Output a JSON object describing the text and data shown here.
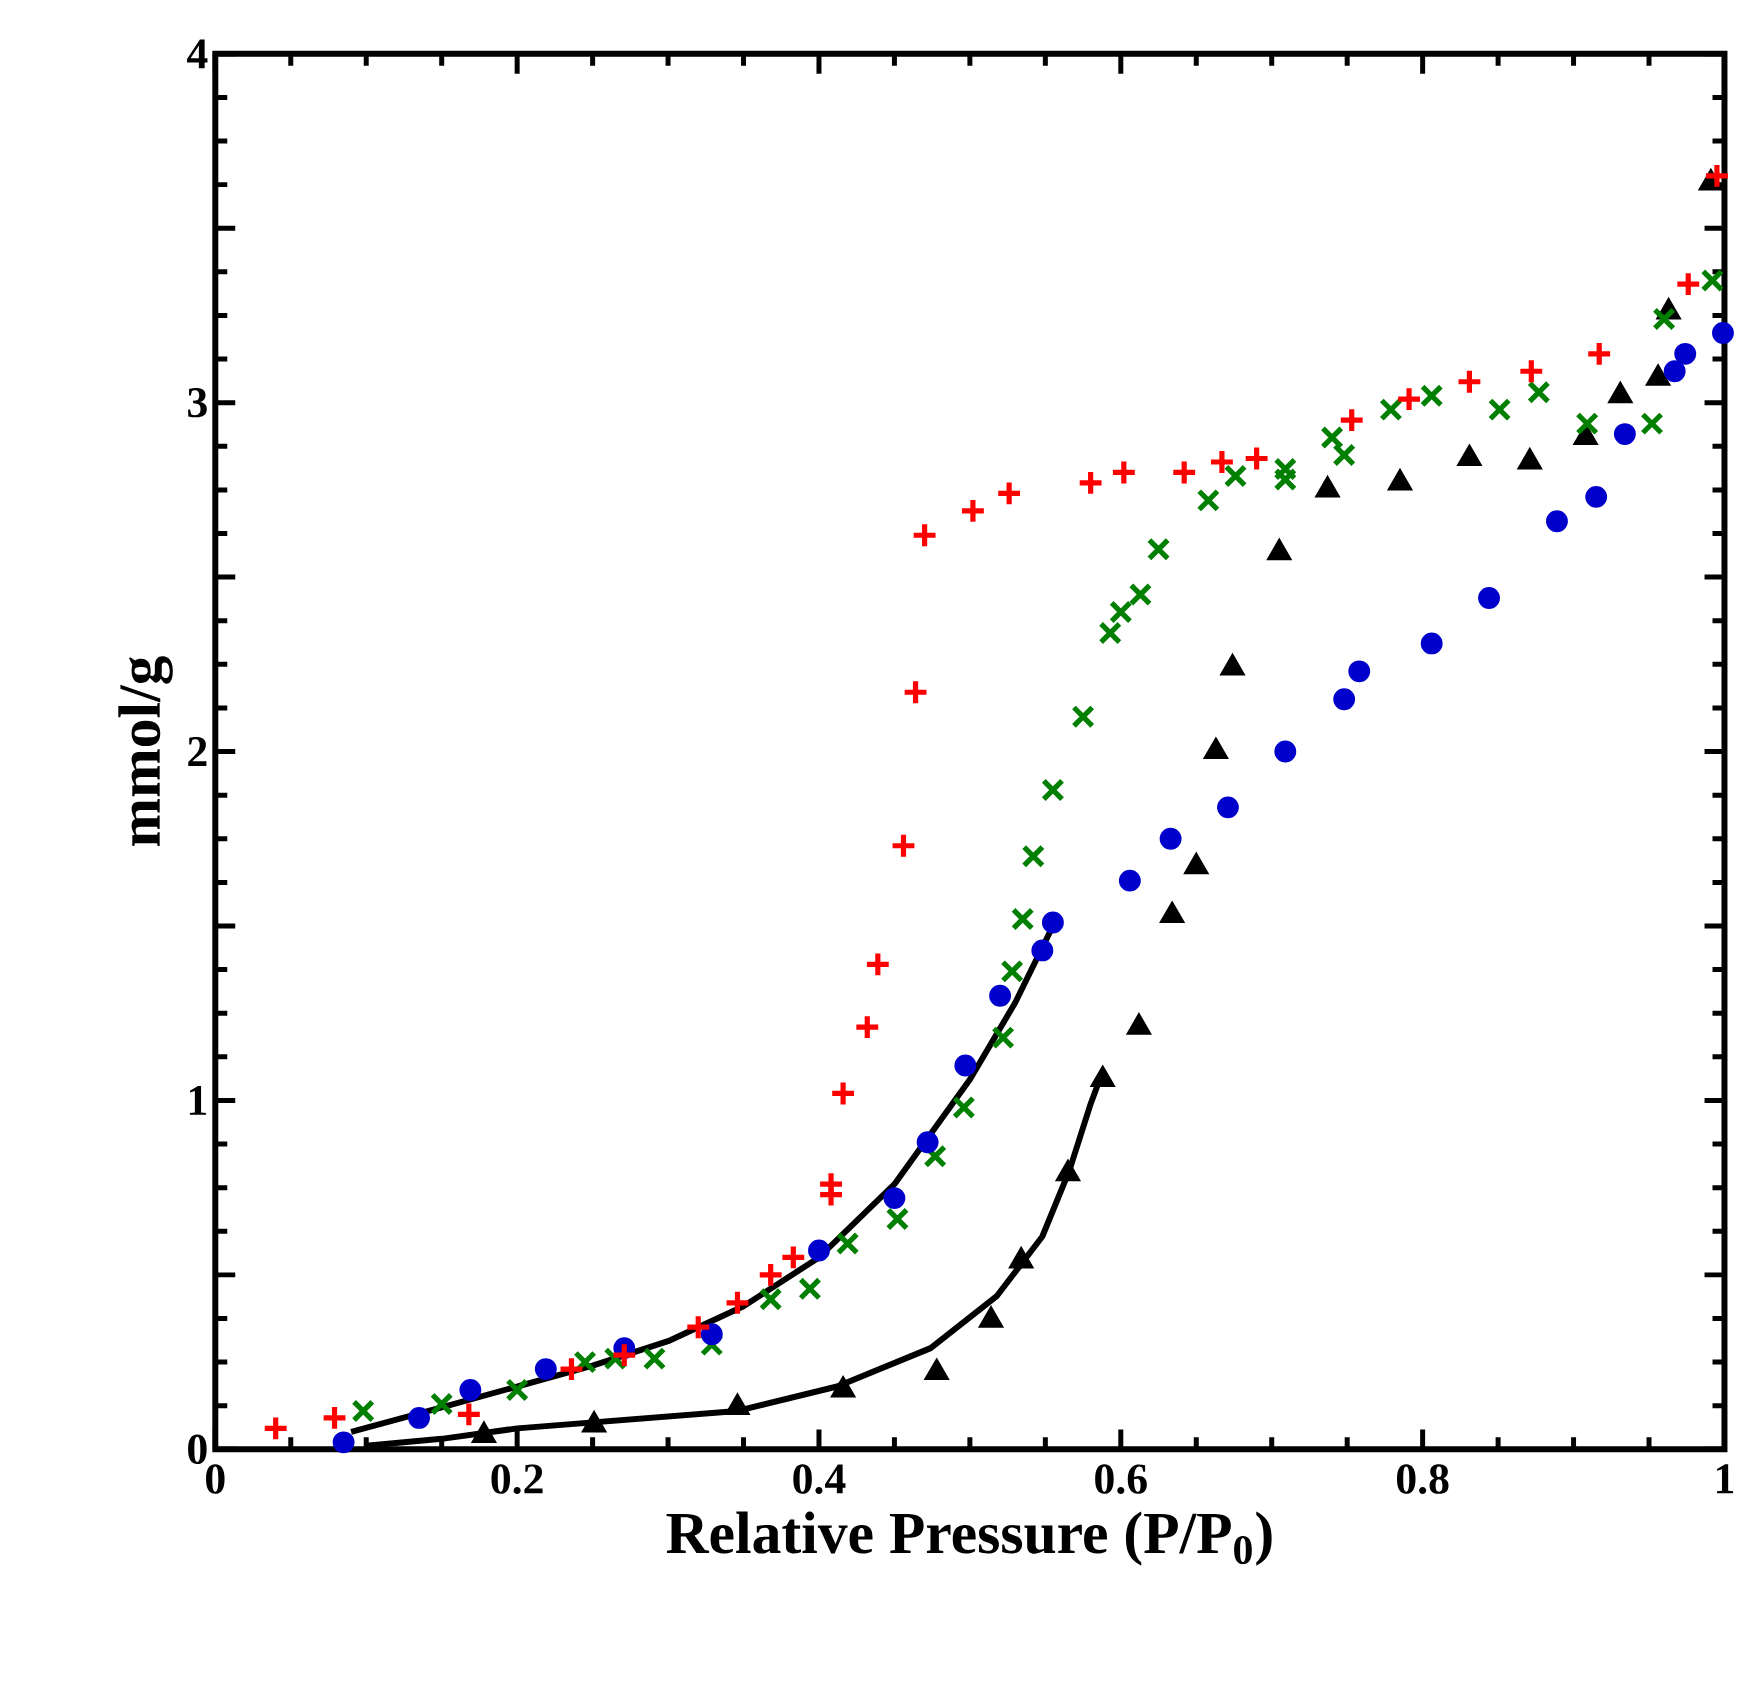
{
  "chart_data": {
    "type": "scatter",
    "xlabel": "Relative Pressure (P/P$_{0}$)",
    "ylabel": "mmol/g",
    "xlim": [
      0,
      1
    ],
    "ylim": [
      0,
      4
    ],
    "xticks": [
      0,
      0.2,
      0.4,
      0.6,
      0.8,
      1
    ],
    "yticks": [
      0,
      {
        "value": 0.5,
        "label": null
      },
      1,
      {
        "value": 1.5,
        "label": null
      },
      2,
      {
        "value": 2.5,
        "label": null
      },
      3,
      {
        "value": 3.5,
        "label": null
      },
      4
    ],
    "grid": false,
    "series": [
      {
        "marker": "plus",
        "color": "#ff0000",
        "x": [
          0.04,
          0.079,
          0.168,
          0.236,
          0.271,
          0.32,
          0.346,
          0.368,
          0.383,
          0.408,
          0.408,
          0.416,
          0.432,
          0.439,
          0.456,
          0.464,
          0.47,
          0.502,
          0.526,
          0.58,
          0.602,
          0.642,
          0.667,
          0.69,
          0.753,
          0.791,
          0.831,
          0.872,
          0.917,
          0.976,
          0.995
        ],
        "values": [
          0.06,
          0.09,
          0.1,
          0.23,
          0.27,
          0.35,
          0.42,
          0.5,
          0.55,
          0.73,
          0.76,
          1.02,
          1.21,
          1.39,
          1.73,
          2.17,
          2.62,
          2.69,
          2.74,
          2.77,
          2.8,
          2.8,
          2.83,
          2.84,
          2.95,
          3.01,
          3.06,
          3.09,
          3.14,
          3.34,
          3.65
        ]
      },
      {
        "marker": "circle",
        "color": "#0000cc",
        "x": [
          0.085,
          0.135,
          0.169,
          0.219,
          0.271,
          0.329,
          0.4,
          0.45,
          0.472,
          0.497,
          0.52,
          0.548,
          0.555,
          0.606,
          0.633,
          0.671,
          0.709,
          0.748,
          0.758,
          0.806,
          0.844,
          0.889,
          0.915,
          0.934,
          0.967,
          0.974,
          0.999
        ],
        "values": [
          0.02,
          0.09,
          0.17,
          0.23,
          0.29,
          0.33,
          0.57,
          0.72,
          0.88,
          1.1,
          1.3,
          1.43,
          1.51,
          1.63,
          1.75,
          1.84,
          2.0,
          2.15,
          2.23,
          2.31,
          2.44,
          2.66,
          2.73,
          2.91,
          3.09,
          3.14,
          3.2
        ]
      },
      {
        "marker": "cross",
        "color": "#007f00",
        "x": [
          0.098,
          0.15,
          0.2,
          0.245,
          0.265,
          0.291,
          0.329,
          0.368,
          0.394,
          0.419,
          0.452,
          0.477,
          0.496,
          0.522,
          0.528,
          0.535,
          0.542,
          0.555,
          0.575,
          0.593,
          0.6,
          0.613,
          0.625,
          0.658,
          0.676,
          0.709,
          0.709,
          0.74,
          0.748,
          0.779,
          0.806,
          0.851,
          0.877,
          0.909,
          0.952,
          0.96,
          0.992
        ],
        "values": [
          0.11,
          0.13,
          0.17,
          0.25,
          0.26,
          0.26,
          0.3,
          0.43,
          0.46,
          0.59,
          0.66,
          0.84,
          0.98,
          1.18,
          1.37,
          1.52,
          1.7,
          1.89,
          2.1,
          2.34,
          2.4,
          2.45,
          2.58,
          2.72,
          2.79,
          2.81,
          2.78,
          2.9,
          2.85,
          2.98,
          3.02,
          2.98,
          3.03,
          2.94,
          2.94,
          3.24,
          3.35
        ]
      },
      {
        "marker": "triangle",
        "color": "#000000",
        "x": [
          0.178,
          0.251,
          0.346,
          0.416,
          0.478,
          0.514,
          0.534,
          0.565,
          0.588,
          0.612,
          0.634,
          0.65,
          0.663,
          0.674,
          0.705,
          0.737,
          0.785,
          0.831,
          0.871,
          0.908,
          0.931,
          0.956,
          0.963,
          0.991
        ],
        "values": [
          0.04,
          0.07,
          0.12,
          0.17,
          0.22,
          0.37,
          0.54,
          0.79,
          1.06,
          1.21,
          1.53,
          1.67,
          2.0,
          2.24,
          2.57,
          2.75,
          2.77,
          2.84,
          2.83,
          2.9,
          3.02,
          3.07,
          3.26,
          3.63
        ]
      },
      {
        "type": "line",
        "marker": "none",
        "color": "#000000",
        "x": [
          0.09,
          0.15,
          0.2,
          0.25,
          0.3,
          0.35,
          0.4,
          0.45,
          0.5,
          0.53,
          0.555
        ],
        "values": [
          0.05,
          0.12,
          0.18,
          0.24,
          0.31,
          0.41,
          0.55,
          0.76,
          1.06,
          1.28,
          1.5
        ]
      },
      {
        "type": "line",
        "marker": "none",
        "color": "#000000",
        "x": [
          0.1,
          0.15,
          0.2,
          0.346,
          0.412,
          0.474,
          0.518,
          0.548,
          0.566,
          0.58,
          0.586
        ],
        "values": [
          0.01,
          0.03,
          0.06,
          0.11,
          0.18,
          0.29,
          0.44,
          0.61,
          0.8,
          0.99,
          1.06
        ]
      }
    ]
  }
}
